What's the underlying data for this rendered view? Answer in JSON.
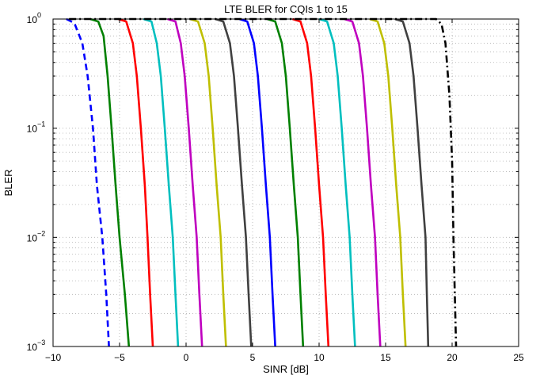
{
  "chart_data": {
    "type": "line",
    "title": "LTE BLER for CQIs 1 to 15",
    "xlabel": "SINR [dB]",
    "ylabel": "BLER",
    "xlim": [
      -10,
      25
    ],
    "ylim": [
      0.001,
      1
    ],
    "yscale": "log",
    "grid": true,
    "legend": "none",
    "x_ticks": [
      "−10",
      "−5",
      "0",
      "5",
      "10",
      "15",
      "20",
      "25"
    ],
    "y_ticks": [
      {
        "base": "10",
        "exp": "0"
      },
      {
        "base": "10",
        "exp": "−1"
      },
      {
        "base": "10",
        "exp": "−2"
      },
      {
        "base": "10",
        "exp": "−3"
      }
    ],
    "series": [
      {
        "color": "#0000ff",
        "dash": "dashed",
        "points": [
          [
            -9.0,
            1
          ],
          [
            -8.4,
            0.92
          ],
          [
            -7.8,
            0.6
          ],
          [
            -7.4,
            0.3
          ],
          [
            -7.0,
            0.1
          ],
          [
            -6.7,
            0.03
          ],
          [
            -6.3,
            0.01
          ],
          [
            -6.0,
            0.003
          ],
          [
            -5.8,
            0.001
          ]
        ]
      },
      {
        "color": "#008000",
        "dash": "solid",
        "points": [
          [
            -7.2,
            1
          ],
          [
            -6.6,
            0.95
          ],
          [
            -6.2,
            0.7
          ],
          [
            -5.9,
            0.3
          ],
          [
            -5.6,
            0.1
          ],
          [
            -5.3,
            0.03
          ],
          [
            -5.0,
            0.01
          ],
          [
            -4.6,
            0.003
          ],
          [
            -4.3,
            0.001
          ]
        ]
      },
      {
        "color": "#ff0000",
        "dash": "solid",
        "points": [
          [
            -5.1,
            1
          ],
          [
            -4.5,
            0.95
          ],
          [
            -4.0,
            0.6
          ],
          [
            -3.7,
            0.3
          ],
          [
            -3.4,
            0.1
          ],
          [
            -3.1,
            0.03
          ],
          [
            -2.9,
            0.01
          ],
          [
            -2.7,
            0.003
          ],
          [
            -2.5,
            0.001
          ]
        ]
      },
      {
        "color": "#00bfbf",
        "dash": "solid",
        "points": [
          [
            -3.2,
            1
          ],
          [
            -2.6,
            0.95
          ],
          [
            -2.2,
            0.6
          ],
          [
            -1.9,
            0.3
          ],
          [
            -1.6,
            0.1
          ],
          [
            -1.3,
            0.03
          ],
          [
            -1.0,
            0.01
          ],
          [
            -0.8,
            0.003
          ],
          [
            -0.6,
            0.001
          ]
        ]
      },
      {
        "color": "#bf00bf",
        "dash": "solid",
        "points": [
          [
            -1.4,
            1
          ],
          [
            -0.8,
            0.95
          ],
          [
            -0.4,
            0.6
          ],
          [
            -0.1,
            0.3
          ],
          [
            0.2,
            0.1
          ],
          [
            0.5,
            0.03
          ],
          [
            0.8,
            0.01
          ],
          [
            1.0,
            0.003
          ],
          [
            1.2,
            0.001
          ]
        ]
      },
      {
        "color": "#bfbf00",
        "dash": "solid",
        "points": [
          [
            0.3,
            1
          ],
          [
            0.9,
            0.95
          ],
          [
            1.4,
            0.6
          ],
          [
            1.7,
            0.3
          ],
          [
            2.0,
            0.1
          ],
          [
            2.3,
            0.03
          ],
          [
            2.6,
            0.01
          ],
          [
            2.8,
            0.003
          ],
          [
            3.0,
            0.001
          ]
        ]
      },
      {
        "color": "#404040",
        "dash": "solid",
        "points": [
          [
            2.2,
            1
          ],
          [
            2.8,
            0.95
          ],
          [
            3.3,
            0.6
          ],
          [
            3.6,
            0.3
          ],
          [
            3.9,
            0.1
          ],
          [
            4.2,
            0.03
          ],
          [
            4.5,
            0.01
          ],
          [
            4.7,
            0.003
          ],
          [
            4.9,
            0.001
          ]
        ]
      },
      {
        "color": "#0000ff",
        "dash": "solid",
        "points": [
          [
            4.0,
            1
          ],
          [
            4.6,
            0.95
          ],
          [
            5.1,
            0.6
          ],
          [
            5.4,
            0.3
          ],
          [
            5.7,
            0.1
          ],
          [
            6.0,
            0.03
          ],
          [
            6.3,
            0.01
          ],
          [
            6.5,
            0.003
          ],
          [
            6.7,
            0.001
          ]
        ]
      },
      {
        "color": "#008000",
        "dash": "solid",
        "points": [
          [
            6.1,
            1
          ],
          [
            6.7,
            0.95
          ],
          [
            7.2,
            0.6
          ],
          [
            7.5,
            0.3
          ],
          [
            7.8,
            0.1
          ],
          [
            8.1,
            0.03
          ],
          [
            8.4,
            0.01
          ],
          [
            8.6,
            0.003
          ],
          [
            8.8,
            0.001
          ]
        ]
      },
      {
        "color": "#ff0000",
        "dash": "solid",
        "points": [
          [
            8.0,
            1
          ],
          [
            8.6,
            0.95
          ],
          [
            9.1,
            0.6
          ],
          [
            9.4,
            0.3
          ],
          [
            9.7,
            0.1
          ],
          [
            10.0,
            0.03
          ],
          [
            10.3,
            0.01
          ],
          [
            10.5,
            0.003
          ],
          [
            10.7,
            0.001
          ]
        ]
      },
      {
        "color": "#00bfbf",
        "dash": "solid",
        "points": [
          [
            10.0,
            1
          ],
          [
            10.6,
            0.95
          ],
          [
            11.1,
            0.6
          ],
          [
            11.4,
            0.3
          ],
          [
            11.7,
            0.1
          ],
          [
            12.0,
            0.03
          ],
          [
            12.3,
            0.01
          ],
          [
            12.5,
            0.003
          ],
          [
            12.7,
            0.001
          ]
        ]
      },
      {
        "color": "#bf00bf",
        "dash": "solid",
        "points": [
          [
            11.9,
            1
          ],
          [
            12.5,
            0.95
          ],
          [
            13.0,
            0.6
          ],
          [
            13.3,
            0.3
          ],
          [
            13.6,
            0.1
          ],
          [
            13.9,
            0.03
          ],
          [
            14.2,
            0.01
          ],
          [
            14.4,
            0.003
          ],
          [
            14.6,
            0.001
          ]
        ]
      },
      {
        "color": "#bfbf00",
        "dash": "solid",
        "points": [
          [
            13.8,
            1
          ],
          [
            14.4,
            0.95
          ],
          [
            14.9,
            0.6
          ],
          [
            15.2,
            0.3
          ],
          [
            15.5,
            0.1
          ],
          [
            15.8,
            0.03
          ],
          [
            16.1,
            0.01
          ],
          [
            16.3,
            0.003
          ],
          [
            16.5,
            0.001
          ]
        ]
      },
      {
        "color": "#404040",
        "dash": "solid",
        "points": [
          [
            15.7,
            1
          ],
          [
            16.3,
            0.95
          ],
          [
            16.8,
            0.6
          ],
          [
            17.1,
            0.3
          ],
          [
            17.4,
            0.1
          ],
          [
            17.7,
            0.03
          ],
          [
            18.0,
            0.01
          ],
          [
            18.1,
            0.003
          ],
          [
            18.2,
            0.001
          ]
        ]
      },
      {
        "color": "#000000",
        "dash": "dashdot",
        "points": [
          [
            -8.8,
            1
          ],
          [
            18.8,
            1
          ],
          [
            19.2,
            0.9
          ],
          [
            19.5,
            0.6
          ],
          [
            19.8,
            0.2
          ],
          [
            20.0,
            0.05
          ],
          [
            20.1,
            0.01
          ],
          [
            20.2,
            0.003
          ],
          [
            20.3,
            0.001
          ]
        ]
      }
    ]
  }
}
